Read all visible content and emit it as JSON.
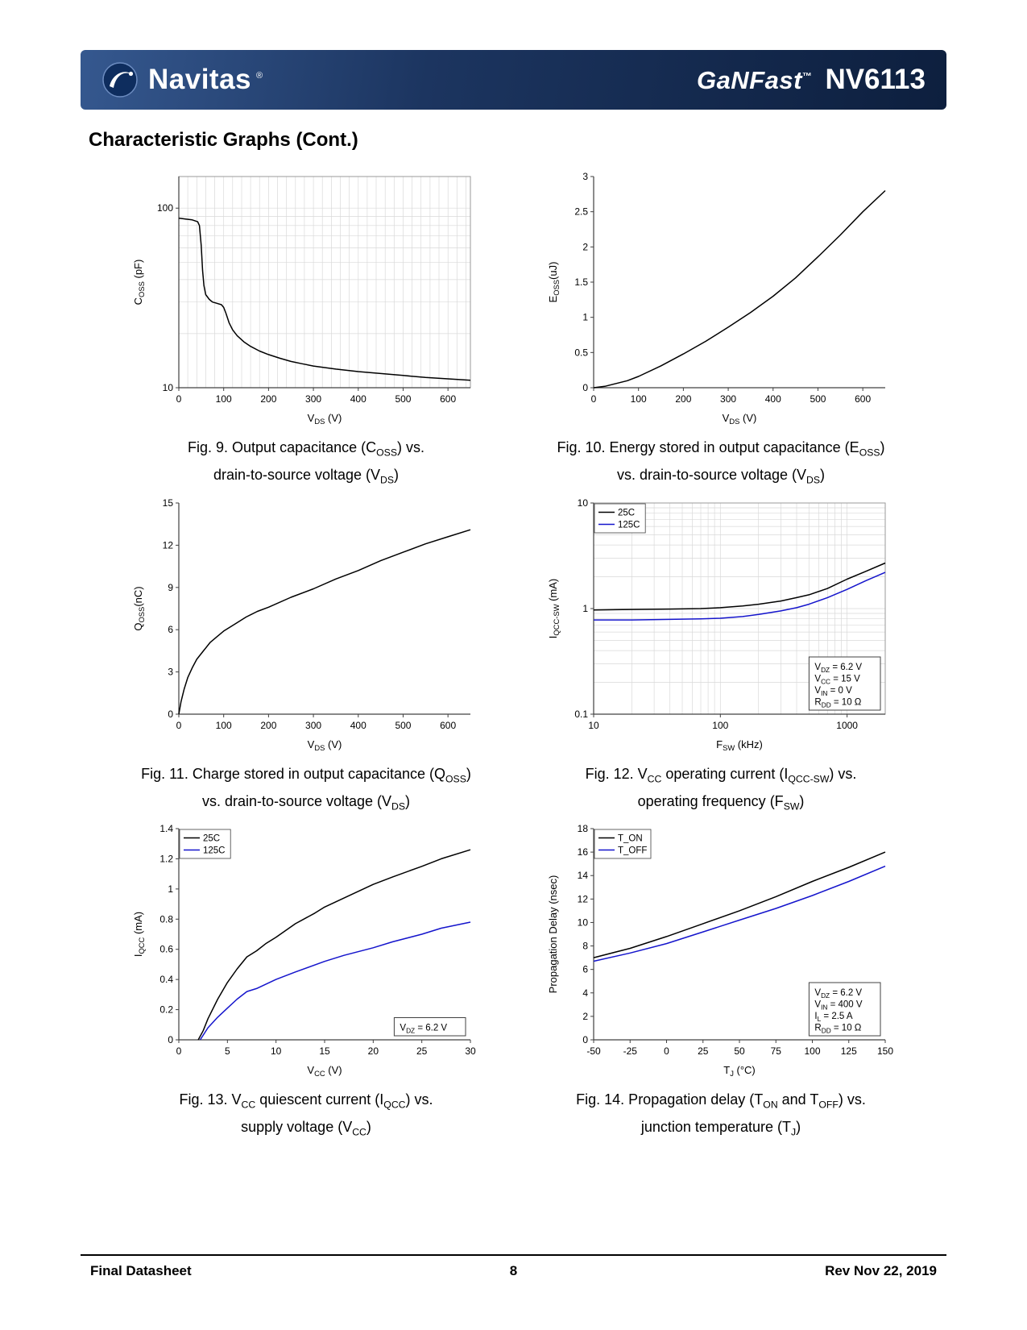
{
  "header": {
    "brand": "Navitas",
    "brand_mark": "®",
    "family": "GaNFast",
    "family_mark": "™",
    "part_number": "NV6113"
  },
  "page_title": "Characteristic Graphs (Cont.)",
  "footer": {
    "left": "Final Datasheet",
    "page_number": "8",
    "right": "Rev Nov 22, 2019"
  },
  "colors": {
    "series_black": "#000000",
    "series_blue": "#1414cc",
    "grid": "#d9d9d9",
    "axis": "#404040"
  },
  "chart_data": [
    {
      "id": "fig9",
      "type": "line",
      "caption_lines": [
        "Fig. 9. Output capacitance (C_{OSS}) vs.",
        "drain-to-source voltage (V_{DS})"
      ],
      "xlabel": "V_{DS} (V)",
      "ylabel": "C_{OSS} (pF)",
      "xlim": [
        0,
        650
      ],
      "ylim": [
        10,
        150
      ],
      "xlog": false,
      "ylog": true,
      "xticks": [
        0,
        100,
        200,
        300,
        400,
        500,
        600
      ],
      "yticks": [
        10,
        100
      ],
      "grid": {
        "x_minor_step": 20,
        "y_log_minor": true
      },
      "box": true,
      "series": [
        {
          "name": "C_OSS",
          "color": "#000000",
          "points": [
            [
              0,
              88
            ],
            [
              15,
              87
            ],
            [
              30,
              86
            ],
            [
              42,
              84
            ],
            [
              46,
              80
            ],
            [
              50,
              62
            ],
            [
              53,
              45
            ],
            [
              56,
              37
            ],
            [
              60,
              33
            ],
            [
              68,
              31
            ],
            [
              75,
              30
            ],
            [
              85,
              29.5
            ],
            [
              95,
              29
            ],
            [
              100,
              28
            ],
            [
              105,
              26
            ],
            [
              112,
              23
            ],
            [
              120,
              21
            ],
            [
              130,
              19.5
            ],
            [
              145,
              18
            ],
            [
              160,
              17
            ],
            [
              180,
              16
            ],
            [
              200,
              15.3
            ],
            [
              225,
              14.6
            ],
            [
              250,
              14
            ],
            [
              275,
              13.6
            ],
            [
              300,
              13.2
            ],
            [
              350,
              12.7
            ],
            [
              400,
              12.3
            ],
            [
              450,
              12
            ],
            [
              500,
              11.7
            ],
            [
              550,
              11.4
            ],
            [
              600,
              11.2
            ],
            [
              650,
              11
            ]
          ]
        }
      ]
    },
    {
      "id": "fig10",
      "type": "line",
      "caption_lines": [
        "Fig. 10. Energy stored in output capacitance (E_{OSS})",
        "vs. drain-to-source voltage (V_{DS})"
      ],
      "xlabel": "V_{DS} (V)",
      "ylabel": "E_{OSS}(uJ)",
      "xlim": [
        0,
        650
      ],
      "ylim": [
        0,
        3
      ],
      "xlog": false,
      "ylog": false,
      "xticks": [
        0,
        100,
        200,
        300,
        400,
        500,
        600
      ],
      "yticks": [
        0,
        0.5,
        1,
        1.5,
        2,
        2.5,
        3
      ],
      "box": false,
      "series": [
        {
          "name": "E_OSS",
          "color": "#000000",
          "points": [
            [
              0,
              0
            ],
            [
              25,
              0.02
            ],
            [
              50,
              0.06
            ],
            [
              75,
              0.1
            ],
            [
              100,
              0.16
            ],
            [
              150,
              0.31
            ],
            [
              200,
              0.48
            ],
            [
              250,
              0.66
            ],
            [
              300,
              0.86
            ],
            [
              350,
              1.07
            ],
            [
              400,
              1.3
            ],
            [
              450,
              1.56
            ],
            [
              500,
              1.86
            ],
            [
              550,
              2.17
            ],
            [
              600,
              2.5
            ],
            [
              650,
              2.8
            ]
          ]
        }
      ]
    },
    {
      "id": "fig11",
      "type": "line",
      "caption_lines": [
        "Fig. 11. Charge stored in output capacitance (Q_{OSS})",
        "vs. drain-to-source voltage (V_{DS})"
      ],
      "xlabel": "V_{DS} (V)",
      "ylabel": "Q_{OSS}(nC)",
      "xlim": [
        0,
        650
      ],
      "ylim": [
        0,
        15
      ],
      "xlog": false,
      "ylog": false,
      "xticks": [
        0,
        100,
        200,
        300,
        400,
        500,
        600
      ],
      "yticks": [
        0,
        3,
        6,
        9,
        12,
        15
      ],
      "box": false,
      "series": [
        {
          "name": "Q_OSS",
          "color": "#000000",
          "points": [
            [
              0,
              0
            ],
            [
              5,
              0.9
            ],
            [
              12,
              1.8
            ],
            [
              20,
              2.6
            ],
            [
              30,
              3.3
            ],
            [
              40,
              3.9
            ],
            [
              55,
              4.5
            ],
            [
              70,
              5.1
            ],
            [
              85,
              5.5
            ],
            [
              100,
              5.9
            ],
            [
              125,
              6.4
            ],
            [
              150,
              6.9
            ],
            [
              175,
              7.3
            ],
            [
              200,
              7.6
            ],
            [
              250,
              8.3
            ],
            [
              300,
              8.9
            ],
            [
              350,
              9.6
            ],
            [
              400,
              10.2
            ],
            [
              450,
              10.9
            ],
            [
              500,
              11.5
            ],
            [
              550,
              12.1
            ],
            [
              600,
              12.6
            ],
            [
              650,
              13.1
            ]
          ]
        }
      ]
    },
    {
      "id": "fig12",
      "type": "line",
      "caption_lines": [
        "Fig. 12. V_{CC} operating current (I_{QCC-SW}) vs.",
        "operating frequency (F_{SW})"
      ],
      "xlabel": "F_{SW} (kHz)",
      "ylabel": "I_{QCC-SW} (mA)",
      "xlim": [
        10,
        2000
      ],
      "ylim": [
        0.1,
        10
      ],
      "xlog": true,
      "ylog": true,
      "xticks": [
        10,
        100,
        1000
      ],
      "yticks": [
        0.1,
        1,
        10
      ],
      "grid": {
        "x_log_minor": true,
        "y_log_minor": true
      },
      "box": true,
      "legend": true,
      "annotation": {
        "lines": [
          "V_{DZ} = 6.2 V",
          "V_{CC} = 15 V",
          "V_{IN} = 0 V",
          "R_{DD} = 10 Ω"
        ],
        "position": "bottom-right"
      },
      "series": [
        {
          "name": "25C",
          "color": "#000000",
          "points": [
            [
              10,
              0.97
            ],
            [
              20,
              0.98
            ],
            [
              40,
              0.99
            ],
            [
              70,
              1.0
            ],
            [
              100,
              1.02
            ],
            [
              150,
              1.06
            ],
            [
              200,
              1.1
            ],
            [
              300,
              1.18
            ],
            [
              400,
              1.27
            ],
            [
              500,
              1.35
            ],
            [
              700,
              1.55
            ],
            [
              1000,
              1.9
            ],
            [
              1400,
              2.25
            ],
            [
              2000,
              2.7
            ]
          ]
        },
        {
          "name": "125C",
          "color": "#1414cc",
          "points": [
            [
              10,
              0.78
            ],
            [
              20,
              0.78
            ],
            [
              40,
              0.79
            ],
            [
              70,
              0.8
            ],
            [
              100,
              0.81
            ],
            [
              150,
              0.84
            ],
            [
              200,
              0.88
            ],
            [
              300,
              0.95
            ],
            [
              400,
              1.02
            ],
            [
              500,
              1.1
            ],
            [
              700,
              1.27
            ],
            [
              1000,
              1.52
            ],
            [
              1400,
              1.83
            ],
            [
              2000,
              2.2
            ]
          ]
        }
      ]
    },
    {
      "id": "fig13",
      "type": "line",
      "caption_lines": [
        "Fig. 13. V_{CC} quiescent current (I_{QCC}) vs.",
        "supply voltage (V_{CC})"
      ],
      "xlabel": "V_{CC} (V)",
      "ylabel": "I_{QCC} (mA)",
      "xlim": [
        0,
        30
      ],
      "ylim": [
        0,
        1.4
      ],
      "xlog": false,
      "ylog": false,
      "xticks": [
        0,
        5,
        10,
        15,
        20,
        25,
        30
      ],
      "yticks": [
        0,
        0.2,
        0.4,
        0.6,
        0.8,
        1,
        1.2,
        1.4
      ],
      "box": false,
      "legend": true,
      "annotation": {
        "lines": [
          "V_{DZ} = 6.2 V"
        ],
        "position": "bottom-right"
      },
      "series": [
        {
          "name": "25C",
          "color": "#000000",
          "points": [
            [
              2,
              0
            ],
            [
              2.5,
              0.06
            ],
            [
              3,
              0.14
            ],
            [
              4,
              0.27
            ],
            [
              5,
              0.38
            ],
            [
              6,
              0.47
            ],
            [
              7,
              0.55
            ],
            [
              8,
              0.59
            ],
            [
              9,
              0.64
            ],
            [
              10,
              0.68
            ],
            [
              12,
              0.77
            ],
            [
              14,
              0.84
            ],
            [
              15,
              0.88
            ],
            [
              17,
              0.94
            ],
            [
              20,
              1.03
            ],
            [
              22,
              1.08
            ],
            [
              25,
              1.15
            ],
            [
              27,
              1.2
            ],
            [
              30,
              1.26
            ]
          ]
        },
        {
          "name": "125C",
          "color": "#1414cc",
          "points": [
            [
              2.2,
              0
            ],
            [
              3,
              0.08
            ],
            [
              4,
              0.15
            ],
            [
              5,
              0.21
            ],
            [
              6,
              0.27
            ],
            [
              7,
              0.32
            ],
            [
              8,
              0.34
            ],
            [
              10,
              0.4
            ],
            [
              12,
              0.45
            ],
            [
              15,
              0.52
            ],
            [
              17,
              0.56
            ],
            [
              20,
              0.61
            ],
            [
              22,
              0.65
            ],
            [
              25,
              0.7
            ],
            [
              27,
              0.74
            ],
            [
              30,
              0.78
            ]
          ]
        }
      ]
    },
    {
      "id": "fig14",
      "type": "line",
      "caption_lines": [
        "Fig. 14. Propagation delay (T_{ON} and T_{OFF}) vs.",
        "junction temperature (T_{J})"
      ],
      "xlabel": "T_{J} (°C)",
      "ylabel": "Propagation Delay (nsec)",
      "xlim": [
        -50,
        150
      ],
      "ylim": [
        0,
        18
      ],
      "xlog": false,
      "ylog": false,
      "xticks": [
        -50,
        -25,
        0,
        25,
        50,
        75,
        100,
        125,
        150
      ],
      "yticks": [
        0,
        2,
        4,
        6,
        8,
        10,
        12,
        14,
        16,
        18
      ],
      "box": false,
      "legend": true,
      "annotation": {
        "lines": [
          "V_{DZ} = 6.2 V",
          "V_{IN} = 400 V",
          "I_{L} = 2.5 A",
          "R_{DD} = 10 Ω"
        ],
        "position": "bottom-right"
      },
      "series": [
        {
          "name": "T_ON",
          "color": "#000000",
          "points": [
            [
              -50,
              7
            ],
            [
              -25,
              7.8
            ],
            [
              0,
              8.8
            ],
            [
              25,
              9.9
            ],
            [
              50,
              11
            ],
            [
              75,
              12.2
            ],
            [
              100,
              13.5
            ],
            [
              125,
              14.7
            ],
            [
              150,
              16
            ]
          ]
        },
        {
          "name": "T_OFF",
          "color": "#1414cc",
          "points": [
            [
              -50,
              6.7
            ],
            [
              -25,
              7.4
            ],
            [
              0,
              8.2
            ],
            [
              25,
              9.2
            ],
            [
              50,
              10.2
            ],
            [
              75,
              11.2
            ],
            [
              100,
              12.3
            ],
            [
              125,
              13.5
            ],
            [
              150,
              14.8
            ]
          ]
        }
      ]
    }
  ]
}
